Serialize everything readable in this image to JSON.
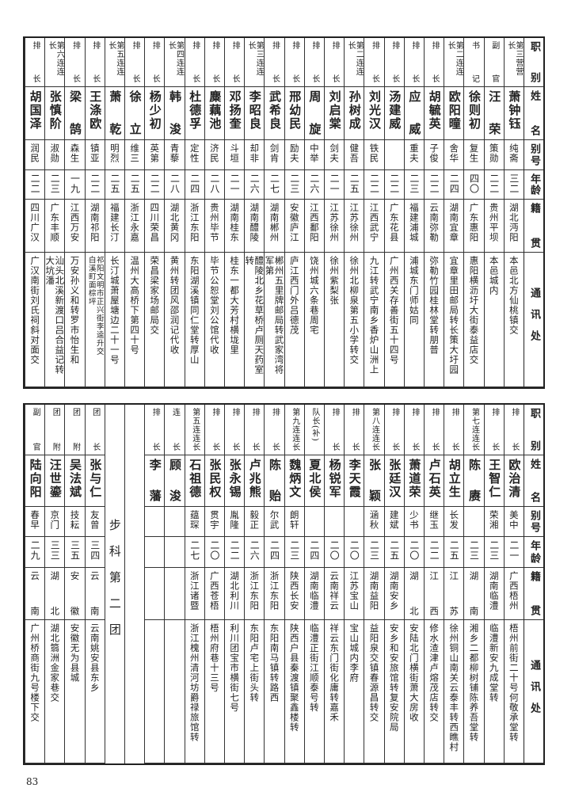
{
  "headers": [
    "职别",
    "姓名",
    "别号",
    "年龄",
    "籍贯",
    "通讯处"
  ],
  "top_table": {
    "rows": [
      {
        "title": "第三营营长",
        "name": "萧钟钰",
        "alias": "纯斋",
        "age": "三二",
        "native": "湖北沔阳",
        "address": "本邑北方仙桃镇交"
      },
      {
        "title": "副官",
        "name": "汪荣",
        "alias": "策勋",
        "age": "二二",
        "native": "贵州平坝",
        "address": "本邑城内"
      },
      {
        "title": "书记",
        "name": "徐则初",
        "alias": "复生",
        "age": "四〇",
        "native": "广东惠阳",
        "address": "惠阳横沥圩大街泰益店交"
      },
      {
        "title": "第二连连长",
        "name": "欧阳曈",
        "alias": "舍华",
        "age": "二四",
        "native": "湖南宜章",
        "address": "宜章里田邮局转长策大圩园"
      },
      {
        "title": "排长",
        "name": "胡毓英",
        "alias": "子俊",
        "age": "二二",
        "native": "云南弥勒",
        "address": "弥勒竹园桂林堂转朋普"
      },
      {
        "title": "排长",
        "name": "应威",
        "alias": "重夫",
        "age": "二三",
        "native": "福建浦城",
        "address": "浦城东门师姑同"
      },
      {
        "title": "排长",
        "name": "汤建威",
        "alias": "",
        "age": "二二",
        "native": "广东花县",
        "address": "广州西关存善街五十四号"
      },
      {
        "title": "排长",
        "name": "刘光汉",
        "alias": "铁民",
        "age": "二二",
        "native": "江西武宁",
        "address": "九江转武宁南乡香炉山洲上"
      },
      {
        "title": "第二连连长",
        "name": "孙树成",
        "alias": "健吾",
        "age": "二五",
        "native": "江苏徐州",
        "address": "徐州北柳泉第五小学转交"
      },
      {
        "title": "排长",
        "name": "刘启棠",
        "alias": "剑夫",
        "age": "二一",
        "native": "江苏徐州",
        "address": "徐州紫梨张"
      },
      {
        "title": "排长",
        "name": "周旋",
        "alias": "中举",
        "age": "二六",
        "native": "江西鄱阳",
        "address": "饶州城六条巷周宅"
      },
      {
        "title": "排长",
        "name": "邢幼民",
        "alias": "励夫",
        "age": "二三",
        "native": "安徽庐江",
        "address": "庐江西门外吕德茂"
      },
      {
        "title": "排长",
        "name": "武希良",
        "alias": "剑肯",
        "age": "二七",
        "native": "湖南郴州",
        "address": "郴州五里牌邮局转武家湾将军第"
      },
      {
        "title": "第三连连长",
        "name": "李昭良",
        "alias": "却非",
        "age": "二六",
        "native": "湖南醴陵",
        "address": "醴陵北乡花草桥卢厕天药室转"
      },
      {
        "title": "排长",
        "name": "邓扬奎",
        "alias": "斗垣",
        "age": "二一",
        "native": "湖南桂东",
        "address": "桂东一都大芳村横垅里"
      },
      {
        "title": "排长",
        "name": "麋藕池",
        "alias": "济民",
        "age": "二八",
        "native": "贵州毕节",
        "address": "毕节公恕堂刘公馆代收"
      },
      {
        "title": "排长",
        "name": "杜德孚",
        "alias": "定性",
        "age": "二四",
        "native": "浙江东阳",
        "address": "东阳湖溪镇同仁堂转厚山"
      },
      {
        "title": "第四连连长",
        "name": "韩浚",
        "alias": "青藜",
        "age": "二八",
        "native": "湖北黄冈",
        "address": "黄州转团风邵润记代收"
      },
      {
        "title": "排长",
        "name": "杨少初",
        "alias": "英第",
        "age": "二二",
        "native": "四川荣昌",
        "address": "荣昌梁家场邮局交"
      },
      {
        "title": "排长",
        "name": "徐立",
        "alias": "维三",
        "age": "二五",
        "native": "浙江永嘉",
        "address": "温州大高桥下第四十号"
      },
      {
        "title": "第五连连长",
        "name": "萧乾",
        "alias": "明烈",
        "age": "二五",
        "native": "福建长汀",
        "address": "长汀城萧屋塘边二十一号"
      },
      {
        "title": "排长",
        "name": "王涤欧",
        "alias": "镇亚",
        "age": "二二",
        "native": "湖南祁阳",
        "address": "祁阳文明市正兴街李逵升交\n白溪町面棕坪"
      },
      {
        "title": "排长",
        "name": "梁鹄",
        "alias": "森生",
        "age": "一九",
        "native": "江西万安",
        "address": "万安孙义和转罗市怡生和"
      },
      {
        "title": "第六连连长",
        "name": "张慎阶",
        "alias": "淑勋",
        "age": "二三",
        "native": "广东丰顺",
        "address": "汕头北溪新渡口吕合益记转大坑潘"
      },
      {
        "title": "排长",
        "name": "胡国泽",
        "alias": "润民",
        "age": "二二",
        "native": "四川广汉",
        "address": "广汉南街刘氏祠斜对面交"
      }
    ]
  },
  "bottom_table": {
    "rows": [
      {
        "title": "排长",
        "name": "欧治清",
        "alias": "美中",
        "age": "二一",
        "native": "广西梧州",
        "address": "梧州前街二十号何敬承堂转"
      },
      {
        "title": "排长",
        "name": "王智仁",
        "alias": "荣湘",
        "age": "二三",
        "native": "湖南临澧",
        "address": "临澧新安九成堂转"
      },
      {
        "title": "第七连连长",
        "name": "陈赓",
        "alias": "",
        "age": "二三",
        "native": "湖南",
        "address": "湘乡二都柳树铺陈养吾堂转"
      },
      {
        "title": "排长",
        "name": "胡立生",
        "alias": "长发",
        "age": "二五",
        "native": "江苏",
        "address": "徐州铜山南关云泰丰转西瞧村"
      },
      {
        "title": "排长",
        "name": "卢石英",
        "alias": "继玉",
        "age": "二二",
        "native": "江西",
        "address": "修水渣津卢熔茂店转交"
      },
      {
        "title": "排长",
        "name": "萧道荣",
        "alias": "少书",
        "age": "二〇",
        "native": "湖北",
        "address": "安陆北门横街萧大房收"
      },
      {
        "title": "排长",
        "name": "张廷汉",
        "alias": "建斌",
        "age": "二五",
        "native": "湖南安乡",
        "address": "安乡和安旅馆转复安院局"
      },
      {
        "title": "第八连连长",
        "name": "张颖",
        "alias": "涵秋",
        "age": "二三",
        "native": "湖南益阳",
        "address": "益阳泉交镇春源昌转交"
      },
      {
        "title": "排长",
        "name": "李天霞",
        "alias": "",
        "age": "二〇",
        "native": "江苏宝山",
        "address": "宝山城内李府"
      },
      {
        "title": "排长",
        "name": "杨锐军",
        "alias": "",
        "age": "二〇",
        "native": "云南祥云",
        "address": "祥云东门街化庸转嘉禾"
      },
      {
        "title": "队长(补)",
        "name": "夏北侯",
        "alias": "",
        "age": "二四",
        "native": "湖南临澧",
        "address": "临澧正街江顺泰号转"
      },
      {
        "title": "第九连连长",
        "name": "魏炳文",
        "alias": "朗轩",
        "age": "二三",
        "native": "陕西长安",
        "address": "陕西户县秦渡镇聚鑫楼转"
      },
      {
        "title": "排长",
        "name": "陈贻",
        "alias": "尔武",
        "age": "二四",
        "native": "浙江东阳",
        "address": "东阳南马镇转路西"
      },
      {
        "title": "排长",
        "name": "卢兆熊",
        "alias": "毅正",
        "age": "二六",
        "native": "浙江东阳",
        "address": "东阳卢宅上街头转"
      },
      {
        "title": "排长",
        "name": "张永锡",
        "alias": "胤隆",
        "age": "二二",
        "native": "湖北利川",
        "address": "利川团宝市横街七号"
      },
      {
        "title": "排长",
        "name": "张民权",
        "alias": "贯宇",
        "age": "二〇",
        "native": "广西苍梧",
        "address": "梧州府巷十三号"
      },
      {
        "title": "第五连连长",
        "name": "石祖德",
        "alias": "蕴琛",
        "age": "二七",
        "native": "浙江诸暨",
        "address": "浙江槐州清河坊爵禄旅馆转"
      },
      {
        "title": "连长",
        "name": "顾浚",
        "alias": "",
        "age": "",
        "native": "",
        "address": ""
      },
      {
        "title": "排长",
        "name": "李藩",
        "alias": "",
        "age": "",
        "native": "",
        "address": ""
      },
      {
        "blank": true
      },
      {
        "section": "步科第二团"
      },
      {
        "title": "团长",
        "name": "张与仁",
        "alias": "友曾",
        "age": "三四",
        "native": "云南",
        "address": "云南姚安县东乡"
      },
      {
        "title": "团附",
        "name": "吴法斌",
        "alias": "技耘",
        "age": "三五",
        "native": "安徽",
        "address": "安徽无为县城"
      },
      {
        "title": "团附",
        "name": "汪世鎏",
        "alias": "京门",
        "age": "三三",
        "native": "湖北",
        "address": "湖北篛洲金家巷交"
      },
      {
        "title": "副官",
        "name": "陆向阳",
        "alias": "春早",
        "age": "二九",
        "native": "云南",
        "address": "广州桥商街九号楼下交"
      }
    ]
  },
  "page_number": "83"
}
